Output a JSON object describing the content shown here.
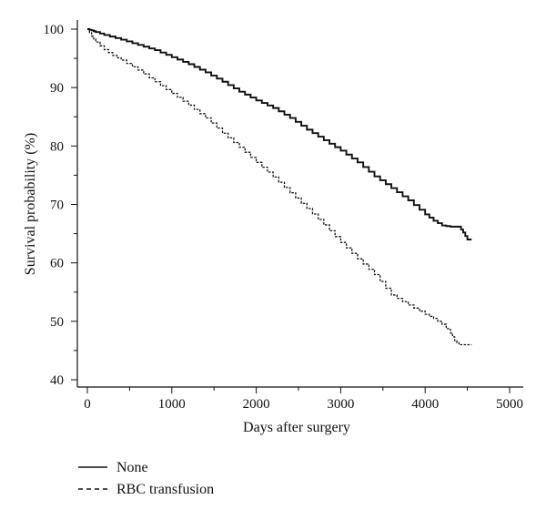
{
  "chart_data": {
    "type": "line",
    "xlabel": "Days after surgery",
    "ylabel": "Survival probability (%)",
    "xlim": [
      0,
      5000
    ],
    "ylim": [
      40,
      100
    ],
    "x_ticks": [
      0,
      1000,
      2000,
      3000,
      4000,
      5000
    ],
    "y_ticks": [
      40,
      50,
      60,
      70,
      80,
      90,
      100
    ],
    "grid": false,
    "legend_position": "bottom-left",
    "series": [
      {
        "name": "None",
        "line_style": "solid",
        "x": [
          0,
          50,
          100,
          200,
          400,
          600,
          800,
          1000,
          1200,
          1400,
          1600,
          1800,
          2000,
          2200,
          2400,
          2600,
          2800,
          3000,
          3200,
          3400,
          3600,
          3800,
          4000,
          4100,
          4200,
          4300,
          4400,
          4450,
          4500,
          4550
        ],
        "y": [
          100,
          99.8,
          99.5,
          99.0,
          98.2,
          97.3,
          96.4,
          95.2,
          94.0,
          92.6,
          91.0,
          89.3,
          87.8,
          86.5,
          84.8,
          82.8,
          81.0,
          79.2,
          77.2,
          74.8,
          72.8,
          70.7,
          68.3,
          67.2,
          66.4,
          66.2,
          66.2,
          65.2,
          64.0,
          64.0
        ]
      },
      {
        "name": "RBC transfusion",
        "line_style": "dashed",
        "x": [
          0,
          50,
          100,
          200,
          300,
          400,
          600,
          800,
          1000,
          1200,
          1400,
          1600,
          1800,
          2000,
          2200,
          2400,
          2600,
          2800,
          3000,
          3200,
          3400,
          3600,
          3800,
          4000,
          4100,
          4200,
          4300,
          4350,
          4400,
          4550
        ],
        "y": [
          100,
          98.8,
          97.8,
          96.5,
          95.5,
          94.7,
          93.0,
          91.0,
          89.0,
          87.0,
          84.8,
          82.2,
          79.8,
          77.2,
          74.7,
          72.0,
          69.3,
          66.5,
          63.5,
          60.7,
          58.0,
          54.5,
          52.8,
          51.2,
          50.5,
          49.5,
          48.0,
          46.7,
          46.0,
          46.0
        ]
      }
    ]
  }
}
